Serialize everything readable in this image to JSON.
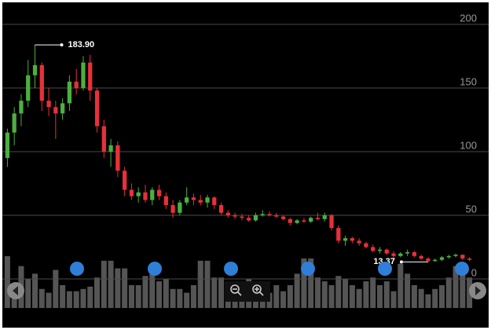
{
  "chart_data": {
    "type": "candlestick",
    "open": [
      95,
      115,
      130,
      140,
      160,
      168,
      140,
      135,
      130,
      138,
      155,
      150,
      170,
      148,
      120,
      100,
      105,
      85,
      70,
      65,
      68,
      62,
      70,
      65,
      58,
      52,
      60,
      64,
      62,
      60,
      64,
      58,
      52,
      50,
      49,
      48,
      46,
      50,
      51,
      50,
      49,
      47,
      44,
      46,
      45,
      48,
      47,
      50,
      40,
      30,
      32,
      30,
      28,
      25,
      22,
      23,
      20,
      18,
      20,
      21,
      18,
      16,
      14,
      15,
      17,
      18,
      19,
      16
    ],
    "high": [
      118,
      135,
      145,
      172,
      183.9,
      170,
      150,
      140,
      142,
      160,
      165,
      175,
      176,
      150,
      125,
      110,
      108,
      88,
      75,
      72,
      74,
      72,
      74,
      68,
      62,
      62,
      72,
      67,
      66,
      66,
      65,
      60,
      54,
      52,
      51,
      50,
      52,
      54,
      53,
      52,
      50,
      48,
      47,
      48,
      49,
      52,
      52,
      51,
      42,
      34,
      33,
      32,
      29,
      27,
      25,
      24,
      22,
      21,
      23,
      22,
      19,
      17,
      16,
      18,
      19,
      20,
      19,
      17
    ],
    "low": [
      88,
      105,
      120,
      135,
      150,
      132,
      128,
      110,
      125,
      132,
      145,
      148,
      140,
      115,
      95,
      88,
      80,
      65,
      62,
      60,
      60,
      58,
      62,
      55,
      48,
      50,
      58,
      58,
      58,
      56,
      55,
      50,
      48,
      47,
      46,
      45,
      45,
      49,
      49,
      48,
      46,
      42,
      43,
      44,
      44,
      46,
      45,
      38,
      28,
      26,
      28,
      26,
      24,
      21,
      20,
      19,
      16,
      17,
      18,
      17,
      15,
      13.37,
      13.5,
      14,
      16,
      17,
      15,
      14
    ],
    "close": [
      115,
      130,
      140,
      160,
      168,
      140,
      135,
      130,
      138,
      155,
      150,
      170,
      148,
      120,
      100,
      105,
      85,
      70,
      65,
      68,
      62,
      70,
      65,
      58,
      52,
      60,
      64,
      62,
      60,
      64,
      58,
      52,
      50,
      49,
      48,
      46,
      50,
      51,
      50,
      49,
      47,
      44,
      46,
      45,
      48,
      47,
      50,
      40,
      30,
      32,
      30,
      28,
      25,
      22,
      23,
      20,
      18,
      20,
      21,
      18,
      16,
      14,
      15,
      17,
      18,
      19,
      16,
      15
    ],
    "volume": [
      68,
      30,
      55,
      38,
      45,
      25,
      20,
      50,
      30,
      22,
      22,
      25,
      28,
      40,
      62,
      62,
      52,
      52,
      30,
      30,
      42,
      45,
      35,
      38,
      25,
      25,
      20,
      30,
      62,
      62,
      40,
      40,
      20,
      22,
      25,
      38,
      30,
      25,
      20,
      30,
      22,
      30,
      45,
      65,
      65,
      40,
      35,
      30,
      42,
      38,
      30,
      25,
      35,
      40,
      30,
      35,
      22,
      58,
      45,
      30,
      25,
      18,
      25,
      30,
      40,
      55,
      45,
      40
    ],
    "up_color": "#4caf3f",
    "down_color": "#e8303a",
    "volume_color": "#555555",
    "ylim": [
      0,
      200
    ],
    "yticks": [
      0,
      50,
      100,
      150,
      200
    ],
    "volume_ylim": [
      0,
      100
    ],
    "grid": true,
    "max_label": "183.90",
    "min_label": "13.37"
  }
}
